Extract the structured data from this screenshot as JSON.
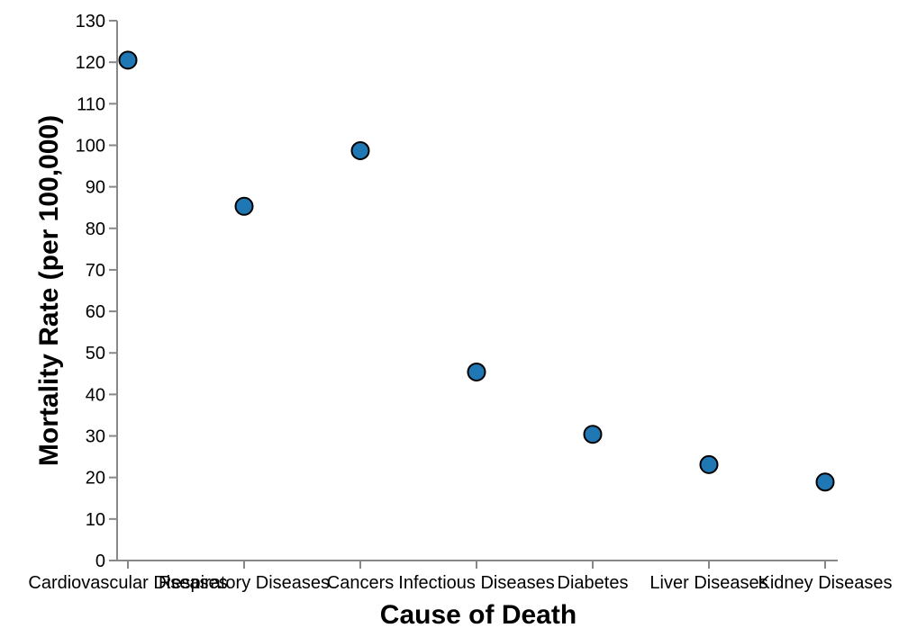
{
  "chart_data": {
    "type": "scatter",
    "title": "",
    "xlabel": "Cause of Death",
    "ylabel": "Mortality Rate (per 100,000)",
    "categories": [
      "Cardiovascular Diseases",
      "Respiratory Diseases",
      "Cancers",
      "Infectious Diseases",
      "Diabetes",
      "Liver Diseases",
      "Kidney Diseases"
    ],
    "values": [
      120.5,
      85.3,
      98.7,
      45.4,
      30.4,
      23.1,
      18.9
    ],
    "ylim": [
      0,
      130
    ],
    "yticks": [
      "0",
      "10",
      "20",
      "30",
      "40",
      "50",
      "60",
      "70",
      "80",
      "90",
      "100",
      "110",
      "120",
      "130"
    ],
    "grid": false,
    "point_color": "#1f77b4"
  }
}
